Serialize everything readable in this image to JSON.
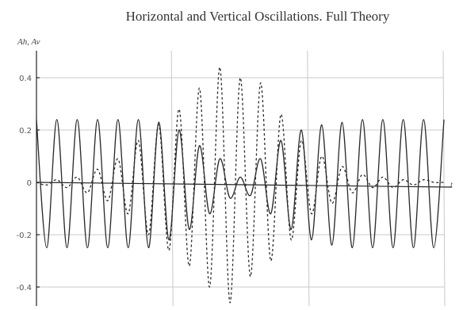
{
  "chart_data": {
    "type": "line",
    "title": "Horizontal and Vertical Oscillations. Full Theory",
    "ylabel": "Ah, Av",
    "xlabel": "t",
    "ylim": [
      -0.5,
      0.5
    ],
    "xlim": [
      0,
      1
    ],
    "yticks": [
      0.4,
      0.2,
      0,
      -0.2,
      -0.4
    ],
    "ytick_labels": [
      "0.4",
      "0.2",
      "0",
      "-0.2",
      "-0.4"
    ],
    "xgrid": [
      0.333,
      0.667,
      1.0
    ],
    "grid": true,
    "legend": "none",
    "series": [
      {
        "style": "solid",
        "x": [
          0.0,
          0.025,
          0.05,
          0.075,
          0.1,
          0.125,
          0.15,
          0.175,
          0.2,
          0.225,
          0.25,
          0.275,
          0.3,
          0.325,
          0.35,
          0.375,
          0.4,
          0.425,
          0.45,
          0.475,
          0.5,
          0.525,
          0.55,
          0.575,
          0.6,
          0.625,
          0.65,
          0.675,
          0.7,
          0.725,
          0.75,
          0.775,
          0.8,
          0.825,
          0.85,
          0.875,
          0.9,
          0.925,
          0.95,
          0.975,
          1.0
        ],
        "y": [
          0.24,
          -0.25,
          0.24,
          -0.25,
          0.24,
          -0.25,
          0.24,
          -0.25,
          0.24,
          -0.25,
          0.24,
          -0.25,
          0.23,
          -0.22,
          0.2,
          -0.18,
          0.14,
          -0.12,
          0.09,
          -0.06,
          0.02,
          -0.05,
          0.09,
          -0.12,
          0.16,
          -0.18,
          0.2,
          -0.22,
          0.22,
          -0.24,
          0.23,
          -0.25,
          0.24,
          -0.25,
          0.24,
          -0.25,
          0.24,
          -0.25,
          0.24,
          -0.25,
          0.24
        ]
      },
      {
        "style": "dashed",
        "x": [
          0.0,
          0.025,
          0.05,
          0.075,
          0.1,
          0.125,
          0.15,
          0.175,
          0.2,
          0.225,
          0.25,
          0.275,
          0.3,
          0.325,
          0.35,
          0.375,
          0.4,
          0.425,
          0.45,
          0.475,
          0.5,
          0.525,
          0.55,
          0.575,
          0.6,
          0.625,
          0.65,
          0.675,
          0.7,
          0.725,
          0.75,
          0.775,
          0.8,
          0.825,
          0.85,
          0.875,
          0.9,
          0.925,
          0.95,
          0.975,
          1.0
        ],
        "y": [
          0.0,
          -0.01,
          0.01,
          -0.02,
          0.02,
          -0.04,
          0.05,
          -0.07,
          0.09,
          -0.12,
          0.16,
          -0.2,
          0.22,
          -0.26,
          0.28,
          -0.32,
          0.36,
          -0.4,
          0.44,
          -0.46,
          0.4,
          -0.36,
          0.38,
          -0.3,
          0.26,
          -0.22,
          0.16,
          -0.12,
          0.1,
          -0.08,
          0.06,
          -0.04,
          0.03,
          -0.02,
          0.02,
          -0.02,
          0.01,
          -0.01,
          0.01,
          0.0,
          0.0
        ]
      }
    ]
  }
}
